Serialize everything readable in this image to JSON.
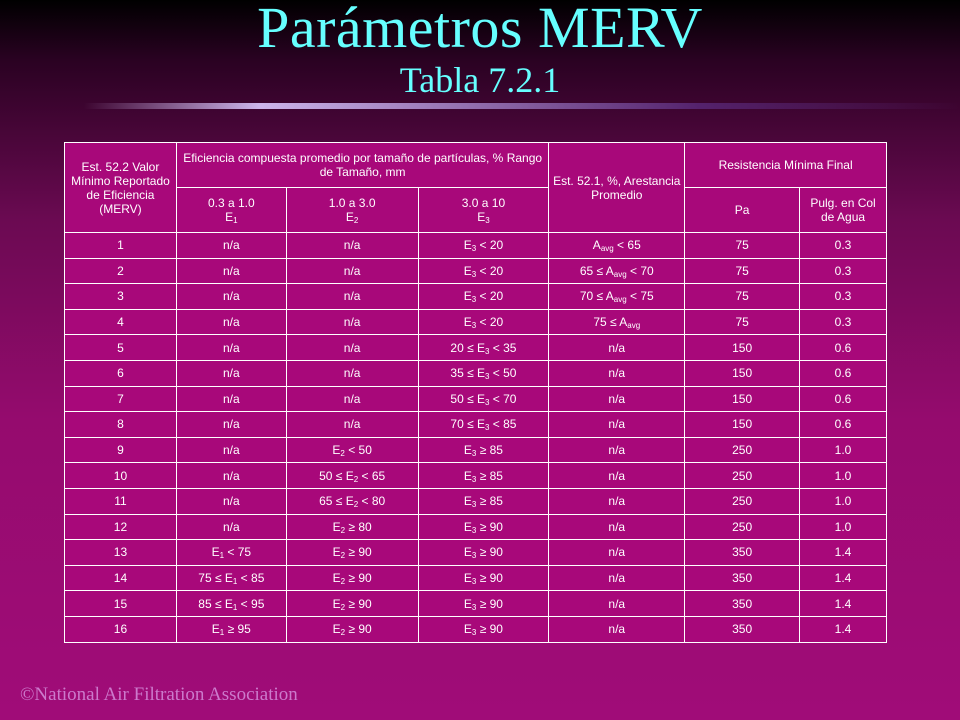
{
  "slide": {
    "title": "Parámetros MERV",
    "subtitle": "Tabla 7.2.1",
    "footer": "©National Air Filtration Association"
  },
  "table": {
    "header": {
      "merv_col": "Est. 52.2 Valor Mínimo Reportado de Eficiencia (MERV)",
      "efficiency_group": "Eficiencia compuesta promedio por tamaño de partículas, % Rango de Tamaño, mm",
      "arrestance_col": "Est. 52.1, %, Arestancia Promedio",
      "resistance_group": "Resistencia Mínima Final",
      "e1_range": "0.3 a 1.0",
      "e1_label": "E",
      "e1_sub": "1",
      "e2_range": "1.0 a 3.0",
      "e2_label": "E",
      "e2_sub": "2",
      "e3_range": "3.0 a 10",
      "e3_label": "E",
      "e3_sub": "3",
      "pa_col": "Pa",
      "inwg_line1": "Pulg. en Col",
      "inwg_line2": "de Agua"
    },
    "rows": [
      {
        "merv": "1",
        "e1": [
          {
            "t": "n/a"
          }
        ],
        "e2": [
          {
            "t": "n/a"
          }
        ],
        "e3": [
          {
            "t": "E"
          },
          {
            "s": "3"
          },
          {
            "t": " < 20"
          }
        ],
        "arr": [
          {
            "t": "A"
          },
          {
            "s": "avg"
          },
          {
            "t": " < 65"
          }
        ],
        "pa": "75",
        "inwg": "0.3"
      },
      {
        "merv": "2",
        "e1": [
          {
            "t": "n/a"
          }
        ],
        "e2": [
          {
            "t": "n/a"
          }
        ],
        "e3": [
          {
            "t": "E"
          },
          {
            "s": "3"
          },
          {
            "t": " < 20"
          }
        ],
        "arr": [
          {
            "t": "65 ≤ A"
          },
          {
            "s": "avg"
          },
          {
            "t": " < 70"
          }
        ],
        "pa": "75",
        "inwg": "0.3"
      },
      {
        "merv": "3",
        "e1": [
          {
            "t": "n/a"
          }
        ],
        "e2": [
          {
            "t": "n/a"
          }
        ],
        "e3": [
          {
            "t": "E"
          },
          {
            "s": "3"
          },
          {
            "t": " < 20"
          }
        ],
        "arr": [
          {
            "t": "70 ≤ A"
          },
          {
            "s": "avg"
          },
          {
            "t": " < 75"
          }
        ],
        "pa": "75",
        "inwg": "0.3"
      },
      {
        "merv": "4",
        "e1": [
          {
            "t": "n/a"
          }
        ],
        "e2": [
          {
            "t": "n/a"
          }
        ],
        "e3": [
          {
            "t": "E"
          },
          {
            "s": "3"
          },
          {
            "t": " < 20"
          }
        ],
        "arr": [
          {
            "t": "75 ≤ A"
          },
          {
            "s": "avg"
          }
        ],
        "pa": "75",
        "inwg": "0.3"
      },
      {
        "merv": "5",
        "e1": [
          {
            "t": "n/a"
          }
        ],
        "e2": [
          {
            "t": "n/a"
          }
        ],
        "e3": [
          {
            "t": "20 ≤ E"
          },
          {
            "s": "3"
          },
          {
            "t": " < 35"
          }
        ],
        "arr": [
          {
            "t": "n/a"
          }
        ],
        "pa": "150",
        "inwg": "0.6"
      },
      {
        "merv": "6",
        "e1": [
          {
            "t": "n/a"
          }
        ],
        "e2": [
          {
            "t": "n/a"
          }
        ],
        "e3": [
          {
            "t": "35 ≤ E"
          },
          {
            "s": "3"
          },
          {
            "t": " < 50"
          }
        ],
        "arr": [
          {
            "t": "n/a"
          }
        ],
        "pa": "150",
        "inwg": "0.6"
      },
      {
        "merv": "7",
        "e1": [
          {
            "t": "n/a"
          }
        ],
        "e2": [
          {
            "t": "n/a"
          }
        ],
        "e3": [
          {
            "t": "50 ≤ E"
          },
          {
            "s": "3"
          },
          {
            "t": " < 70"
          }
        ],
        "arr": [
          {
            "t": "n/a"
          }
        ],
        "pa": "150",
        "inwg": "0.6"
      },
      {
        "merv": "8",
        "e1": [
          {
            "t": "n/a"
          }
        ],
        "e2": [
          {
            "t": "n/a"
          }
        ],
        "e3": [
          {
            "t": "70 ≤ E"
          },
          {
            "s": "3"
          },
          {
            "t": " < 85"
          }
        ],
        "arr": [
          {
            "t": "n/a"
          }
        ],
        "pa": "150",
        "inwg": "0.6"
      },
      {
        "merv": "9",
        "e1": [
          {
            "t": "n/a"
          }
        ],
        "e2": [
          {
            "t": "E"
          },
          {
            "s": "2"
          },
          {
            "t": " < 50"
          }
        ],
        "e3": [
          {
            "t": "E"
          },
          {
            "s": "3"
          },
          {
            "t": " ≥ 85"
          }
        ],
        "arr": [
          {
            "t": "n/a"
          }
        ],
        "pa": "250",
        "inwg": "1.0"
      },
      {
        "merv": "10",
        "e1": [
          {
            "t": "n/a"
          }
        ],
        "e2": [
          {
            "t": "50 ≤ E"
          },
          {
            "s": "2"
          },
          {
            "t": " < 65"
          }
        ],
        "e3": [
          {
            "t": "E"
          },
          {
            "s": "3"
          },
          {
            "t": " ≥ 85"
          }
        ],
        "arr": [
          {
            "t": "n/a"
          }
        ],
        "pa": "250",
        "inwg": "1.0"
      },
      {
        "merv": "11",
        "e1": [
          {
            "t": "n/a"
          }
        ],
        "e2": [
          {
            "t": "65 ≤ E"
          },
          {
            "s": "2"
          },
          {
            "t": " < 80"
          }
        ],
        "e3": [
          {
            "t": "E"
          },
          {
            "s": "3"
          },
          {
            "t": " ≥ 85"
          }
        ],
        "arr": [
          {
            "t": "n/a"
          }
        ],
        "pa": "250",
        "inwg": "1.0"
      },
      {
        "merv": "12",
        "e1": [
          {
            "t": "n/a"
          }
        ],
        "e2": [
          {
            "t": "E"
          },
          {
            "s": "2"
          },
          {
            "t": " ≥ 80"
          }
        ],
        "e3": [
          {
            "t": "E"
          },
          {
            "s": "3"
          },
          {
            "t": " ≥ 90"
          }
        ],
        "arr": [
          {
            "t": "n/a"
          }
        ],
        "pa": "250",
        "inwg": "1.0"
      },
      {
        "merv": "13",
        "e1": [
          {
            "t": "E"
          },
          {
            "s": "1"
          },
          {
            "t": " < 75"
          }
        ],
        "e2": [
          {
            "t": "E"
          },
          {
            "s": "2"
          },
          {
            "t": " ≥ 90"
          }
        ],
        "e3": [
          {
            "t": "E"
          },
          {
            "s": "3"
          },
          {
            "t": " ≥ 90"
          }
        ],
        "arr": [
          {
            "t": "n/a"
          }
        ],
        "pa": "350",
        "inwg": "1.4"
      },
      {
        "merv": "14",
        "e1": [
          {
            "t": "75 ≤ E"
          },
          {
            "s": "1"
          },
          {
            "t": " < 85"
          }
        ],
        "e2": [
          {
            "t": "E"
          },
          {
            "s": "2"
          },
          {
            "t": " ≥ 90"
          }
        ],
        "e3": [
          {
            "t": "E"
          },
          {
            "s": "3"
          },
          {
            "t": " ≥ 90"
          }
        ],
        "arr": [
          {
            "t": "n/a"
          }
        ],
        "pa": "350",
        "inwg": "1.4"
      },
      {
        "merv": "15",
        "e1": [
          {
            "t": "85 ≤ E"
          },
          {
            "s": "1"
          },
          {
            "t": " < 95"
          }
        ],
        "e2": [
          {
            "t": "E"
          },
          {
            "s": "2"
          },
          {
            "t": " ≥ 90"
          }
        ],
        "e3": [
          {
            "t": "E"
          },
          {
            "s": "3"
          },
          {
            "t": " ≥ 90"
          }
        ],
        "arr": [
          {
            "t": "n/a"
          }
        ],
        "pa": "350",
        "inwg": "1.4"
      },
      {
        "merv": "16",
        "e1": [
          {
            "t": "E"
          },
          {
            "s": "1"
          },
          {
            "t": " ≥ 95"
          }
        ],
        "e2": [
          {
            "t": "E"
          },
          {
            "s": "2"
          },
          {
            "t": " ≥ 90"
          }
        ],
        "e3": [
          {
            "t": "E"
          },
          {
            "s": "3"
          },
          {
            "t": " ≥ 90"
          }
        ],
        "arr": [
          {
            "t": "n/a"
          }
        ],
        "pa": "350",
        "inwg": "1.4"
      }
    ]
  },
  "colors": {
    "title": "#66ffff",
    "table_bg": "#a8087a",
    "footer": "#cc7acc"
  }
}
